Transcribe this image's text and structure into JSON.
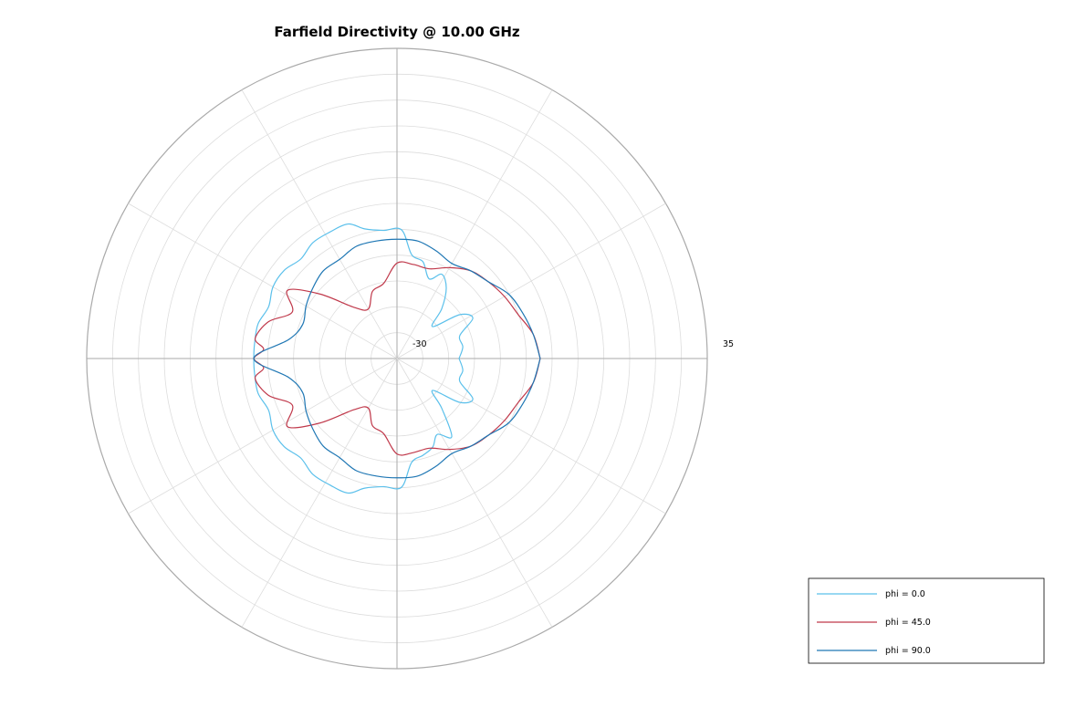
{
  "chart_data": {
    "type": "polar-line",
    "title": "Farfield Directivity @ 10.00 GHz",
    "r_range": [
      -30,
      35
    ],
    "r_labels": [
      "-30",
      "35"
    ],
    "theta_unit": "deg",
    "grid": true,
    "legend_position": "bottom-right",
    "series": [
      {
        "name": "phi = 0.0",
        "color": "#5bc0eb",
        "points": [
          [
            0,
            -17
          ],
          [
            10,
            -16
          ],
          [
            20,
            -16
          ],
          [
            28,
            -12
          ],
          [
            35,
            -14
          ],
          [
            42,
            -20
          ],
          [
            48,
            -16
          ],
          [
            55,
            -12
          ],
          [
            62,
            -10
          ],
          [
            68,
            -12
          ],
          [
            75,
            -9
          ],
          [
            82,
            -8
          ],
          [
            88,
            -3
          ],
          [
            96,
            -3
          ],
          [
            104,
            -2
          ],
          [
            110,
            0
          ],
          [
            118,
            0
          ],
          [
            126,
            0
          ],
          [
            134,
            -1
          ],
          [
            142,
            0
          ],
          [
            150,
            0
          ],
          [
            158,
            -1
          ],
          [
            166,
            0
          ],
          [
            174,
            0
          ],
          [
            180,
            0
          ],
          [
            186,
            0
          ],
          [
            194,
            0
          ],
          [
            202,
            -1
          ],
          [
            210,
            0
          ],
          [
            218,
            0
          ],
          [
            226,
            -1
          ],
          [
            234,
            0
          ],
          [
            242,
            0
          ],
          [
            250,
            0
          ],
          [
            256,
            -2
          ],
          [
            264,
            -3
          ],
          [
            272,
            -3
          ],
          [
            278,
            -8
          ],
          [
            285,
            -9
          ],
          [
            292,
            -10
          ],
          [
            298,
            -12
          ],
          [
            305,
            -10
          ],
          [
            312,
            -16
          ],
          [
            318,
            -20
          ],
          [
            325,
            -14
          ],
          [
            332,
            -12
          ],
          [
            340,
            -16
          ],
          [
            350,
            -16
          ],
          [
            360,
            -17
          ]
        ]
      },
      {
        "name": "phi = 45.0",
        "color": "#c0394b",
        "points": [
          [
            0,
            0
          ],
          [
            10,
            -1
          ],
          [
            20,
            -3
          ],
          [
            30,
            -4
          ],
          [
            40,
            -5
          ],
          [
            50,
            -6
          ],
          [
            60,
            -8
          ],
          [
            70,
            -10
          ],
          [
            80,
            -10
          ],
          [
            90,
            -10
          ],
          [
            100,
            -14
          ],
          [
            110,
            -15
          ],
          [
            120,
            -18
          ],
          [
            130,
            -16
          ],
          [
            140,
            -9
          ],
          [
            148,
            -3
          ],
          [
            156,
            -6
          ],
          [
            164,
            -2
          ],
          [
            172,
            0
          ],
          [
            176,
            -2
          ],
          [
            180,
            0
          ],
          [
            184,
            -2
          ],
          [
            188,
            0
          ],
          [
            196,
            -2
          ],
          [
            204,
            -6
          ],
          [
            212,
            -3
          ],
          [
            220,
            -9
          ],
          [
            230,
            -16
          ],
          [
            240,
            -18
          ],
          [
            250,
            -15
          ],
          [
            260,
            -14
          ],
          [
            270,
            -10
          ],
          [
            280,
            -10
          ],
          [
            290,
            -10
          ],
          [
            300,
            -8
          ],
          [
            310,
            -6
          ],
          [
            320,
            -5
          ],
          [
            330,
            -4
          ],
          [
            340,
            -3
          ],
          [
            350,
            -1
          ],
          [
            360,
            0
          ]
        ]
      },
      {
        "name": "phi = 90.0",
        "color": "#1f77b4",
        "points": [
          [
            0,
            0
          ],
          [
            10,
            -1
          ],
          [
            20,
            -2
          ],
          [
            30,
            -3
          ],
          [
            40,
            -5
          ],
          [
            50,
            -6
          ],
          [
            60,
            -7
          ],
          [
            70,
            -6
          ],
          [
            80,
            -5
          ],
          [
            90,
            -5
          ],
          [
            100,
            -5
          ],
          [
            110,
            -5
          ],
          [
            120,
            -6
          ],
          [
            130,
            -6
          ],
          [
            140,
            -7
          ],
          [
            150,
            -8
          ],
          [
            160,
            -9
          ],
          [
            170,
            -7
          ],
          [
            180,
            0
          ],
          [
            190,
            -7
          ],
          [
            200,
            -9
          ],
          [
            210,
            -8
          ],
          [
            220,
            -7
          ],
          [
            230,
            -6
          ],
          [
            240,
            -6
          ],
          [
            250,
            -5
          ],
          [
            260,
            -5
          ],
          [
            270,
            -5
          ],
          [
            280,
            -5
          ],
          [
            290,
            -6
          ],
          [
            300,
            -7
          ],
          [
            310,
            -6
          ],
          [
            320,
            -5
          ],
          [
            330,
            -3
          ],
          [
            340,
            -2
          ],
          [
            350,
            -1
          ],
          [
            360,
            0
          ]
        ]
      }
    ]
  }
}
